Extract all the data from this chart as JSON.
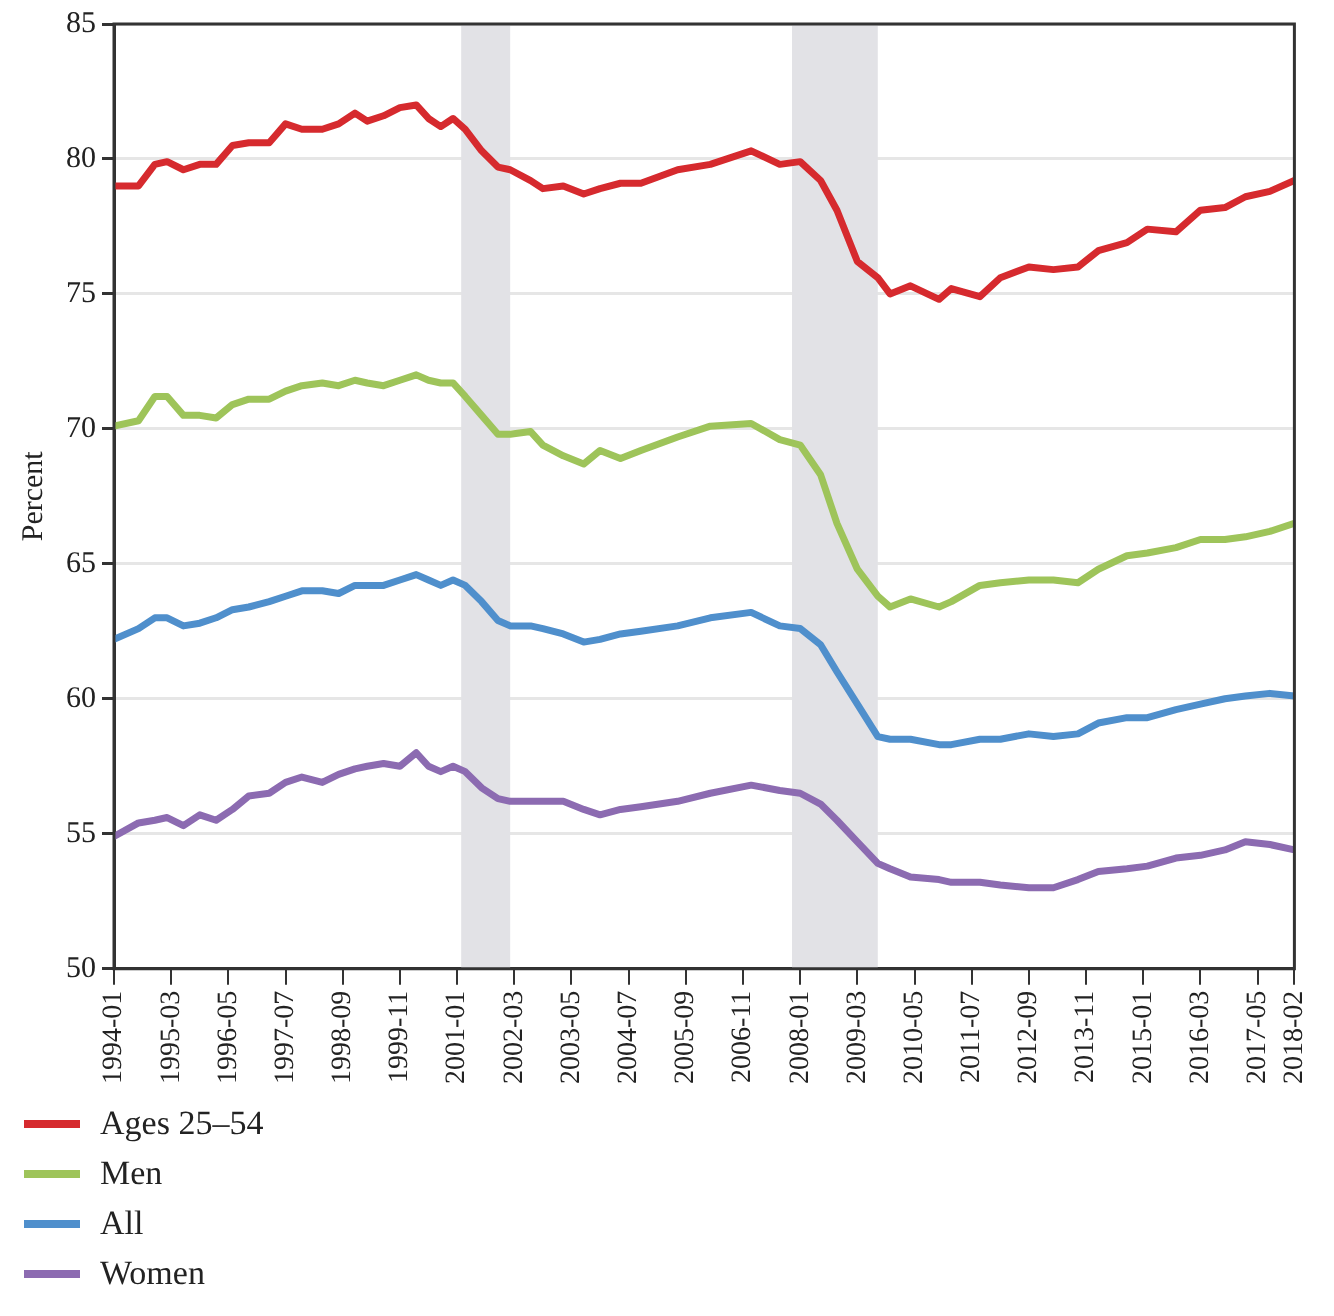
{
  "chart_data": {
    "type": "line",
    "ylabel": "Percent",
    "x": [
      "1994-01",
      "1994-07",
      "1994-11",
      "1995-02",
      "1995-06",
      "1995-10",
      "1996-02",
      "1996-06",
      "1996-10",
      "1997-03",
      "1997-07",
      "1997-11",
      "1998-04",
      "1998-08",
      "1998-12",
      "1999-03",
      "1999-07",
      "1999-11",
      "2000-03",
      "2000-06",
      "2000-09",
      "2000-12",
      "2001-03",
      "2001-07",
      "2001-11",
      "2002-02",
      "2002-07",
      "2002-10",
      "2003-03",
      "2003-08",
      "2003-12",
      "2004-05",
      "2004-10",
      "2005-07",
      "2006-03",
      "2007-01",
      "2007-08",
      "2008-01",
      "2008-06",
      "2008-10",
      "2009-03",
      "2009-08",
      "2009-11",
      "2010-04",
      "2010-11",
      "2011-02",
      "2011-09",
      "2012-02",
      "2012-09",
      "2013-03",
      "2013-09",
      "2014-02",
      "2014-09",
      "2015-02",
      "2015-09",
      "2016-03",
      "2016-09",
      "2017-02",
      "2017-08",
      "2018-02"
    ],
    "series": [
      {
        "name": "Ages 25–54",
        "color": "#d62a2e",
        "values": [
          79.0,
          79.0,
          79.8,
          79.9,
          79.6,
          79.8,
          79.8,
          80.5,
          80.6,
          80.6,
          81.3,
          81.1,
          81.1,
          81.3,
          81.7,
          81.4,
          81.6,
          81.9,
          82.0,
          81.5,
          81.2,
          81.5,
          81.1,
          80.3,
          79.7,
          79.6,
          79.2,
          78.9,
          79.0,
          78.7,
          78.9,
          79.1,
          79.1,
          79.6,
          79.8,
          80.3,
          79.8,
          79.9,
          79.2,
          78.1,
          76.2,
          75.6,
          75.0,
          75.3,
          74.8,
          75.2,
          74.9,
          75.6,
          76.0,
          75.9,
          76.0,
          76.6,
          76.9,
          77.4,
          77.3,
          78.1,
          78.2,
          78.6,
          78.8,
          79.2
        ]
      },
      {
        "name": "Men",
        "color": "#9ec45a",
        "values": [
          70.1,
          70.3,
          71.2,
          71.2,
          70.5,
          70.5,
          70.4,
          70.9,
          71.1,
          71.1,
          71.4,
          71.6,
          71.7,
          71.6,
          71.8,
          71.7,
          71.6,
          71.8,
          72.0,
          71.8,
          71.7,
          71.7,
          71.2,
          70.5,
          69.8,
          69.8,
          69.9,
          69.4,
          69.0,
          68.7,
          69.2,
          68.9,
          69.2,
          69.7,
          70.1,
          70.2,
          69.6,
          69.4,
          68.3,
          66.5,
          64.8,
          63.8,
          63.4,
          63.7,
          63.4,
          63.6,
          64.2,
          64.3,
          64.4,
          64.4,
          64.3,
          64.8,
          65.3,
          65.4,
          65.6,
          65.9,
          65.9,
          66.0,
          66.2,
          66.5
        ]
      },
      {
        "name": "All",
        "color": "#4f8fcc",
        "values": [
          62.2,
          62.6,
          63.0,
          63.0,
          62.7,
          62.8,
          63.0,
          63.3,
          63.4,
          63.6,
          63.8,
          64.0,
          64.0,
          63.9,
          64.2,
          64.2,
          64.2,
          64.4,
          64.6,
          64.4,
          64.2,
          64.4,
          64.2,
          63.6,
          62.9,
          62.7,
          62.7,
          62.6,
          62.4,
          62.1,
          62.2,
          62.4,
          62.5,
          62.7,
          63.0,
          63.2,
          62.7,
          62.6,
          62.0,
          61.0,
          59.8,
          58.6,
          58.5,
          58.5,
          58.3,
          58.3,
          58.5,
          58.5,
          58.7,
          58.6,
          58.7,
          59.1,
          59.3,
          59.3,
          59.6,
          59.8,
          60.0,
          60.1,
          60.2,
          60.1
        ]
      },
      {
        "name": "Women",
        "color": "#8c6bb1",
        "values": [
          54.9,
          55.4,
          55.5,
          55.6,
          55.3,
          55.7,
          55.5,
          55.9,
          56.4,
          56.5,
          56.9,
          57.1,
          56.9,
          57.2,
          57.4,
          57.5,
          57.6,
          57.5,
          58.0,
          57.5,
          57.3,
          57.5,
          57.3,
          56.7,
          56.3,
          56.2,
          56.2,
          56.2,
          56.2,
          55.9,
          55.7,
          55.9,
          56.0,
          56.2,
          56.5,
          56.8,
          56.6,
          56.5,
          56.1,
          55.5,
          54.7,
          53.9,
          53.7,
          53.4,
          53.3,
          53.2,
          53.2,
          53.1,
          53.0,
          53.0,
          53.3,
          53.6,
          53.7,
          53.8,
          54.1,
          54.2,
          54.4,
          54.7,
          54.6,
          54.4
        ]
      }
    ],
    "xlim": [
      "1994-01",
      "2018-02"
    ],
    "xticks": [
      "1994-01",
      "1995-03",
      "1996-05",
      "1997-07",
      "1998-09",
      "1999-11",
      "2001-01",
      "2002-03",
      "2003-05",
      "2004-07",
      "2005-09",
      "2006-11",
      "2008-01",
      "2009-03",
      "2010-05",
      "2011-07",
      "2012-09",
      "2013-11",
      "2015-01",
      "2016-03",
      "2017-05",
      "2018-02"
    ],
    "ylim": [
      50,
      85
    ],
    "yticks": [
      50,
      55,
      60,
      65,
      70,
      75,
      80,
      85
    ],
    "bands": [
      {
        "axis": "x",
        "from": "2001-02",
        "to": "2002-02",
        "color": "#e2e2e6"
      },
      {
        "axis": "x",
        "from": "2007-11",
        "to": "2009-08",
        "color": "#e2e2e6"
      }
    ],
    "grid": "y",
    "legend": "bottom",
    "marker": "none",
    "line_style": "solid"
  }
}
